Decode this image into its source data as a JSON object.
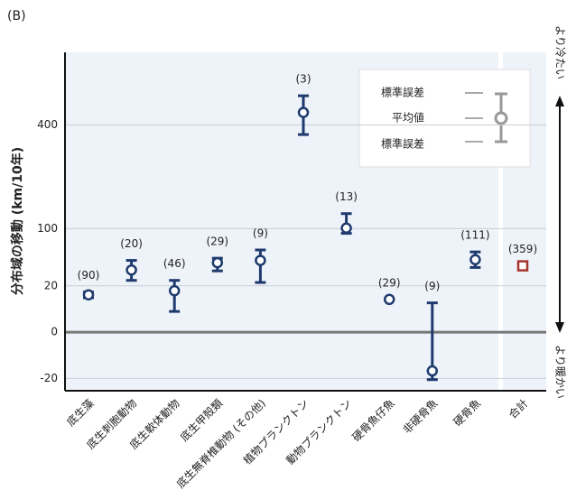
{
  "chart_data": {
    "type": "errorbar",
    "panel_label": "(B)",
    "y_label": "分布域の移動 (km/10年)",
    "y_scale": "sqrt",
    "ylim": [
      -32,
      730
    ],
    "yticks": [
      -20,
      0,
      20,
      100,
      400
    ],
    "categories": [
      "底生藻",
      "底生刺胞動物",
      "底生軟体動物",
      "底生甲殻類",
      "底生無脊椎動物 (その他)",
      "植物プランクトン",
      "動物プランクトン",
      "硬骨魚仔魚",
      "非硬骨魚",
      "硬骨魚",
      "合計"
    ],
    "count_labels": [
      "(90)",
      "(20)",
      "(46)",
      "(29)",
      "(9)",
      "(3)",
      "(13)",
      "(29)",
      "(9)",
      "(111)",
      "(359)"
    ],
    "values": [
      13,
      36,
      16,
      45,
      48,
      450,
      101,
      10,
      -14,
      49,
      41
    ],
    "lower": [
      11,
      25,
      4,
      35,
      23,
      364,
      91,
      null,
      -21,
      39,
      null
    ],
    "upper": [
      15,
      48,
      25,
      51,
      63,
      521,
      131,
      null,
      8,
      60,
      null
    ],
    "color": "#1f3a6e",
    "total_color": "#a6342d",
    "legend": {
      "upper": "標準誤差",
      "mean": "平均値",
      "lower": "標準誤差"
    },
    "right_axis": {
      "top": "より冷たい",
      "bottom": "より暖かい"
    }
  }
}
